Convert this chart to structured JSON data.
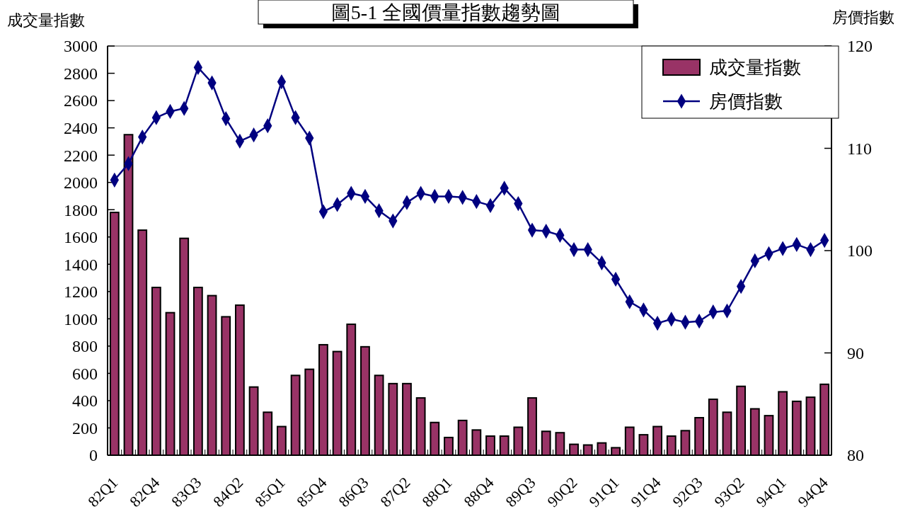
{
  "chart_data": {
    "type": "bar",
    "title": "圖5-1 全國價量指數趨勢圖",
    "ylabel": "成交量指數",
    "y2label": "房價指數",
    "categories": [
      "82Q1",
      null,
      null,
      "82Q4",
      null,
      null,
      "83Q3",
      null,
      null,
      "84Q2",
      null,
      null,
      "85Q1",
      null,
      null,
      "85Q4",
      null,
      null,
      "86Q3",
      null,
      null,
      "87Q2",
      null,
      null,
      "88Q1",
      null,
      null,
      "88Q4",
      null,
      null,
      "89Q3",
      null,
      null,
      "90Q2",
      null,
      null,
      "91Q1",
      null,
      null,
      "91Q4",
      null,
      null,
      "92Q3",
      null,
      null,
      "93Q2",
      null,
      null,
      "94Q1",
      null,
      null,
      "94Q4"
    ],
    "series": [
      {
        "name": "成交量指數",
        "color": "#993366",
        "values": [
          1780,
          2350,
          1650,
          1230,
          1045,
          1590,
          1230,
          1170,
          1015,
          1100,
          500,
          315,
          210,
          585,
          630,
          810,
          760,
          960,
          795,
          585,
          525,
          525,
          420,
          240,
          130,
          255,
          185,
          140,
          140,
          205,
          420,
          175,
          165,
          80,
          75,
          90,
          55,
          205,
          150,
          210,
          140,
          180,
          275,
          410,
          315,
          505,
          340,
          290,
          465,
          395,
          425,
          520
        ]
      },
      {
        "name": "房價指數",
        "type": "line",
        "axis": "y2",
        "color": "#000080",
        "marker": "diamond",
        "values": [
          106.9,
          108.5,
          111.1,
          113.0,
          113.6,
          113.9,
          117.9,
          116.4,
          112.9,
          110.7,
          111.3,
          112.2,
          116.5,
          113.0,
          111.0,
          103.8,
          104.5,
          105.6,
          105.3,
          103.9,
          102.9,
          104.7,
          105.6,
          105.3,
          105.3,
          105.2,
          104.8,
          104.4,
          106.1,
          104.6,
          102.0,
          101.9,
          101.5,
          100.1,
          100.1,
          98.8,
          97.2,
          95.0,
          94.2,
          92.9,
          93.3,
          93.0,
          93.1,
          94.0,
          94.1,
          96.5,
          99.0,
          99.7,
          100.2,
          100.6,
          100.1,
          101.0
        ]
      }
    ],
    "ylim": [
      0,
      3000
    ],
    "yticks": [
      0,
      200,
      400,
      600,
      800,
      1000,
      1200,
      1400,
      1600,
      1800,
      2000,
      2200,
      2400,
      2600,
      2800,
      3000
    ],
    "y2lim": [
      80,
      120
    ],
    "y2ticks": [
      80,
      90,
      100,
      110,
      120
    ],
    "grid": false,
    "legend": "top right"
  }
}
